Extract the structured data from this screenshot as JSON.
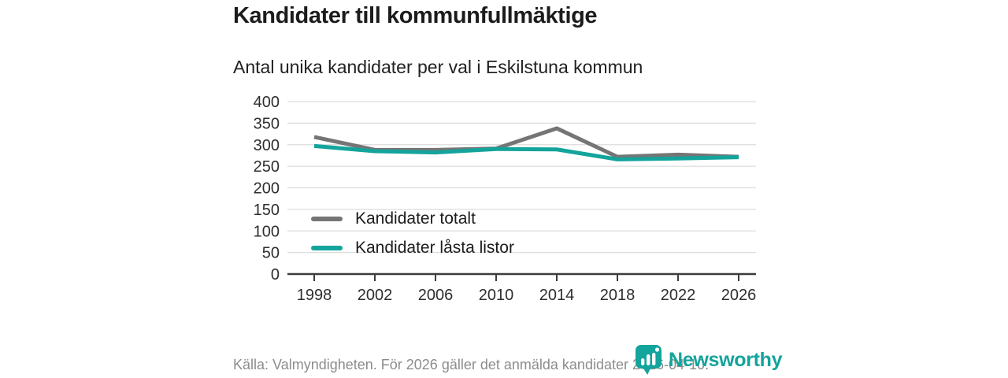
{
  "header": {
    "title": "Kandidater till kommunfullmäktige",
    "subtitle": "Antal unika kandidater per val i Eskilstuna kommun"
  },
  "chart_data": {
    "type": "line",
    "x": [
      1998,
      2002,
      2006,
      2010,
      2014,
      2018,
      2022,
      2026
    ],
    "series": [
      {
        "name": "Kandidater totalt",
        "color": "#757575",
        "values": [
          318,
          288,
          288,
          291,
          338,
          272,
          277,
          272
        ]
      },
      {
        "name": "Kandidater låsta listor",
        "color": "#13a49c",
        "values": [
          297,
          285,
          282,
          290,
          289,
          266,
          268,
          271
        ]
      }
    ],
    "xlabel": "",
    "ylabel": "",
    "ylim": [
      0,
      400
    ],
    "yticks": [
      0,
      50,
      100,
      150,
      200,
      250,
      300,
      350,
      400
    ],
    "grid": "horizontal",
    "legend_position": "inside-bottom-left"
  },
  "footer": {
    "source": "Källa: Valmyndigheten. För 2026 gäller det anmälda kandidater 2026-04-10.",
    "brand": "Newsworthy"
  },
  "colors": {
    "accent_teal": "#13a49c",
    "line_gray": "#757575",
    "gridline": "#dcdcdc",
    "axis": "#3c3c3c",
    "tick_text": "#2e2e2e",
    "footer_text": "#8c8c8c"
  }
}
